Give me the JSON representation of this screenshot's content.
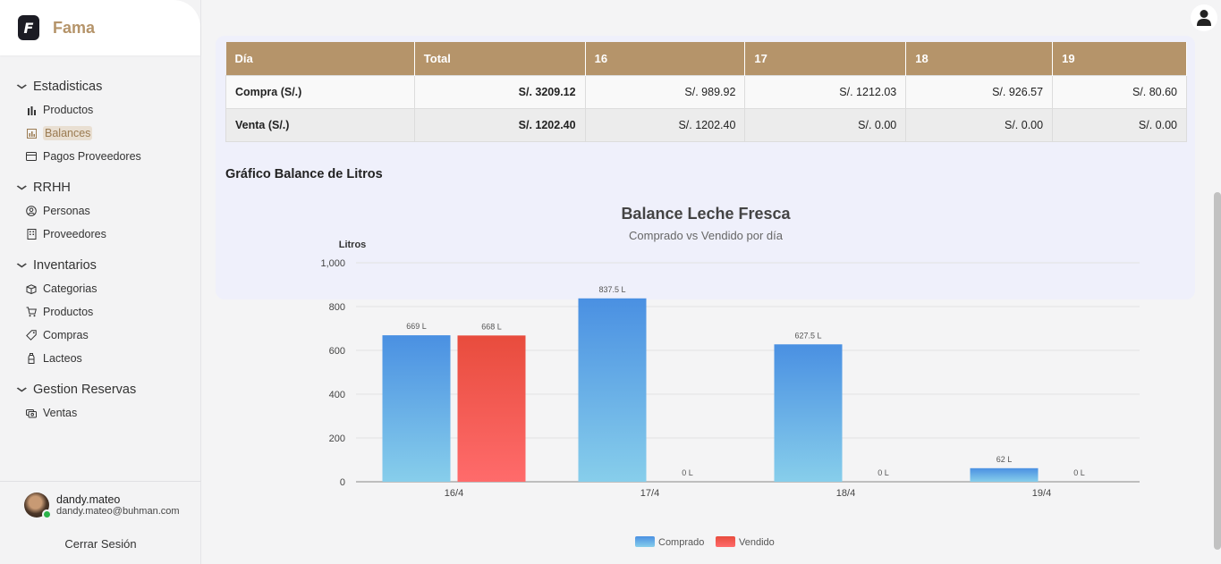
{
  "brand": {
    "logo_letter": "F",
    "name": "Fama"
  },
  "sidebar": {
    "sections": [
      {
        "title": "Estadisticas",
        "items": [
          {
            "label": "Productos",
            "icon": "bar-chart-icon",
            "active": false
          },
          {
            "label": "Balances",
            "icon": "chart-box-icon",
            "active": true
          },
          {
            "label": "Pagos Proveedores",
            "icon": "card-icon",
            "active": false
          }
        ]
      },
      {
        "title": "RRHH",
        "items": [
          {
            "label": "Personas",
            "icon": "person-circle-icon",
            "active": false
          },
          {
            "label": "Proveedores",
            "icon": "building-icon",
            "active": false
          }
        ]
      },
      {
        "title": "Inventarios",
        "items": [
          {
            "label": "Categorias",
            "icon": "boxes-icon",
            "active": false
          },
          {
            "label": "Productos",
            "icon": "cart-icon",
            "active": false
          },
          {
            "label": "Compras",
            "icon": "tag-icon",
            "active": false
          },
          {
            "label": "Lacteos",
            "icon": "bottle-icon",
            "active": false
          }
        ]
      },
      {
        "title": "Gestion Reservas",
        "items": [
          {
            "label": "Ventas",
            "icon": "coins-icon",
            "active": false
          }
        ]
      }
    ]
  },
  "user": {
    "name": "dandy.mateo",
    "email": "dandy.mateo@buhman.com",
    "logout_label": "Cerrar Sesión"
  },
  "table": {
    "headers": [
      "Día",
      "Total",
      "16",
      "17",
      "18",
      "19"
    ],
    "rows": [
      {
        "label": "Compra (S/.)",
        "total": "S/. 3209.12",
        "values": [
          "S/. 989.92",
          "S/. 1212.03",
          "S/. 926.57",
          "S/. 80.60"
        ]
      },
      {
        "label": "Venta (S/.)",
        "total": "S/. 1202.40",
        "values": [
          "S/. 1202.40",
          "S/. 0.00",
          "S/. 0.00",
          "S/. 0.00"
        ]
      }
    ]
  },
  "section_title": "Gráfico Balance de Litros",
  "chart_data": {
    "type": "bar",
    "title": "Balance Leche Fresca",
    "subtitle": "Comprado vs Vendido por día",
    "ylabel": "Litros",
    "ylim": [
      0,
      1000
    ],
    "yticks": [
      "0",
      "200",
      "400",
      "600",
      "800",
      "1,000"
    ],
    "categories": [
      "16/4",
      "17/4",
      "18/4",
      "19/4"
    ],
    "series": [
      {
        "name": "Comprado",
        "values": [
          669,
          837.5,
          627.5,
          62
        ],
        "labels": [
          "669 L",
          "837.5 L",
          "627.5 L",
          "62 L"
        ],
        "color_top": "#4a90e2",
        "color_bottom": "#87ceeb"
      },
      {
        "name": "Vendido",
        "values": [
          668,
          0,
          0,
          0
        ],
        "labels": [
          "668 L",
          "0 L",
          "0 L",
          "0 L"
        ],
        "color_top": "#e84c3d",
        "color_bottom": "#ff6b6b"
      }
    ],
    "grid": true,
    "legend_position": "bottom-center"
  }
}
